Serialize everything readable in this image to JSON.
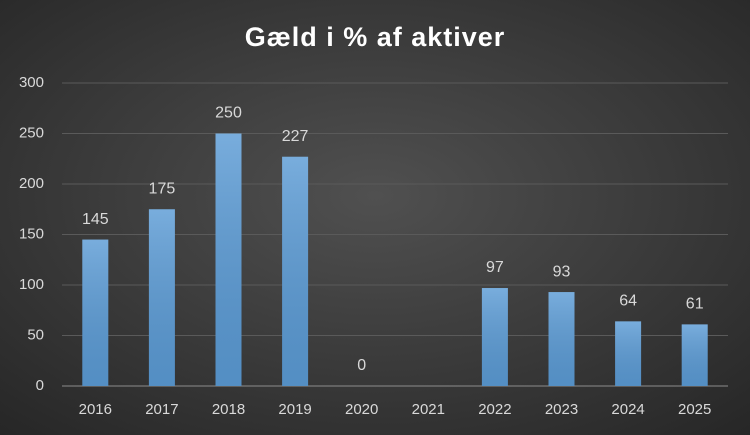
{
  "chart_data": {
    "type": "bar",
    "title": "Gæld i % af aktiver",
    "categories": [
      "2016",
      "2017",
      "2018",
      "2019",
      "2020",
      "2021",
      "2022",
      "2023",
      "2024",
      "2025"
    ],
    "values": [
      145,
      175,
      250,
      227,
      0,
      null,
      97,
      93,
      64,
      61
    ],
    "color": "#5b9bd5",
    "ylim": [
      0,
      300
    ],
    "yticks": [
      0,
      50,
      100,
      150,
      200,
      250,
      300
    ],
    "grid": true
  }
}
